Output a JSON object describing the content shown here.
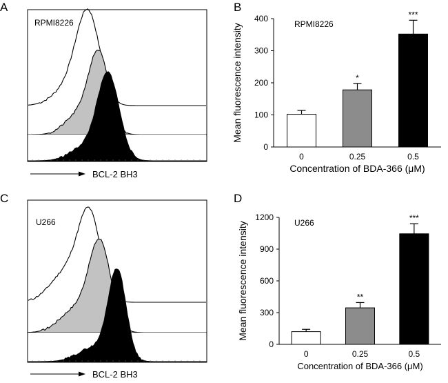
{
  "panels": {
    "A": {
      "letter": "A",
      "cell_line": "RPMI8226",
      "xlabel": "BCL-2 BH3"
    },
    "B": {
      "letter": "B",
      "cell_line": "RPMI8226"
    },
    "C": {
      "letter": "C",
      "cell_line": "U266",
      "xlabel": "BCL-2 BH3"
    },
    "D": {
      "letter": "D",
      "cell_line": "U266"
    }
  },
  "chart_data": [
    {
      "panel": "A",
      "type": "area",
      "title": "RPMI8226",
      "xlabel": "BCL-2 BH3",
      "ylabel": "",
      "description_series": [
        "0 μM (open)",
        "0.25 μM (gray)",
        "0.5 μM (black)"
      ]
    },
    {
      "panel": "B",
      "type": "bar",
      "title": "RPMI8226",
      "categories": [
        "0",
        "0.25",
        "0.5"
      ],
      "values": [
        102,
        178,
        352
      ],
      "errors": [
        12,
        20,
        43
      ],
      "significance": [
        "",
        "*",
        "***"
      ],
      "bar_colors": [
        "#ffffff",
        "#8c8c8c",
        "#000000"
      ],
      "xlabel": "Concentration of BDA-366 (μM)",
      "ylabel": "Mean fluorescence intensity",
      "ylim": [
        0,
        400
      ],
      "yticks": [
        "0",
        "100",
        "200",
        "300",
        "400"
      ]
    },
    {
      "panel": "C",
      "type": "area",
      "title": "U266",
      "xlabel": "BCL-2 BH3",
      "ylabel": "",
      "description_series": [
        "0 μM (open)",
        "0.25 μM (gray)",
        "0.5 μM (black)"
      ]
    },
    {
      "panel": "D",
      "type": "bar",
      "title": "U266",
      "categories": [
        "0",
        "0.25",
        "0.5"
      ],
      "values": [
        120,
        345,
        1045
      ],
      "errors": [
        22,
        50,
        95
      ],
      "significance": [
        "",
        "**",
        "***"
      ],
      "bar_colors": [
        "#ffffff",
        "#8c8c8c",
        "#000000"
      ],
      "xlabel": "Concentration of BDA-366 (μM)",
      "ylabel": "Mean fluorescence intensity",
      "ylim": [
        0,
        1200
      ],
      "yticks": [
        "0",
        "300",
        "600",
        "900",
        "1200"
      ]
    }
  ]
}
